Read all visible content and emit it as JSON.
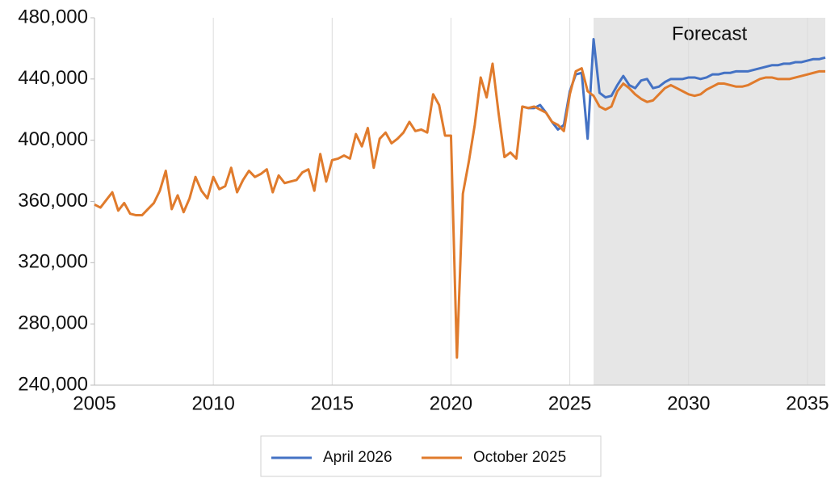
{
  "chart_data": {
    "type": "line",
    "annotation": "Forecast",
    "forecast_start": 2026,
    "shade_color": "#e6e6e6",
    "grid": "x",
    "xlim": [
      2005,
      2035.75
    ],
    "ylim": [
      240000,
      480000
    ],
    "xticks": [
      2005,
      2010,
      2015,
      2020,
      2025,
      2030,
      2035
    ],
    "yticks": [
      {
        "value": 240000,
        "label": "240,000"
      },
      {
        "value": 280000,
        "label": "280,000"
      },
      {
        "value": 320000,
        "label": "320,000"
      },
      {
        "value": 360000,
        "label": "360,000"
      },
      {
        "value": 400000,
        "label": "400,000"
      },
      {
        "value": 440000,
        "label": "440,000"
      },
      {
        "value": 480000,
        "label": "480,000"
      }
    ],
    "x": [
      2005,
      2005.25,
      2005.5,
      2005.75,
      2006,
      2006.25,
      2006.5,
      2006.75,
      2007,
      2007.25,
      2007.5,
      2007.75,
      2008,
      2008.25,
      2008.5,
      2008.75,
      2009,
      2009.25,
      2009.5,
      2009.75,
      2010,
      2010.25,
      2010.5,
      2010.75,
      2011,
      2011.25,
      2011.5,
      2011.75,
      2012,
      2012.25,
      2012.5,
      2012.75,
      2013,
      2013.25,
      2013.5,
      2013.75,
      2014,
      2014.25,
      2014.5,
      2014.75,
      2015,
      2015.25,
      2015.5,
      2015.75,
      2016,
      2016.25,
      2016.5,
      2016.75,
      2017,
      2017.25,
      2017.5,
      2017.75,
      2018,
      2018.25,
      2018.5,
      2018.75,
      2019,
      2019.25,
      2019.5,
      2019.75,
      2020,
      2020.25,
      2020.5,
      2020.75,
      2021,
      2021.25,
      2021.5,
      2021.75,
      2022,
      2022.25,
      2022.5,
      2022.75,
      2023,
      2023.25,
      2023.5,
      2023.75,
      2024,
      2024.25,
      2024.5,
      2024.75,
      2025,
      2025.25,
      2025.5,
      2025.75,
      2026,
      2026.25,
      2026.5,
      2026.75,
      2027,
      2027.25,
      2027.5,
      2027.75,
      2028,
      2028.25,
      2028.5,
      2028.75,
      2029,
      2029.25,
      2029.5,
      2029.75,
      2030,
      2030.25,
      2030.5,
      2030.75,
      2031,
      2031.25,
      2031.5,
      2031.75,
      2032,
      2032.25,
      2032.5,
      2032.75,
      2033,
      2033.25,
      2033.5,
      2033.75,
      2034,
      2034.25,
      2034.5,
      2034.75,
      2035,
      2035.25,
      2035.5,
      2035.75
    ],
    "series": [
      {
        "name": "April 2026",
        "color": "#4472c4",
        "values": [
          null,
          null,
          null,
          null,
          null,
          null,
          null,
          null,
          null,
          null,
          null,
          null,
          null,
          null,
          null,
          null,
          null,
          null,
          null,
          null,
          null,
          null,
          null,
          null,
          null,
          null,
          null,
          null,
          null,
          null,
          null,
          null,
          null,
          null,
          null,
          null,
          null,
          null,
          null,
          null,
          null,
          null,
          null,
          null,
          null,
          null,
          null,
          null,
          null,
          null,
          null,
          null,
          null,
          null,
          null,
          null,
          null,
          null,
          null,
          null,
          null,
          null,
          null,
          null,
          null,
          null,
          null,
          null,
          null,
          null,
          null,
          null,
          422000,
          421000,
          421000,
          423000,
          418000,
          412000,
          407000,
          410000,
          432000,
          443000,
          444000,
          401000,
          466000,
          431000,
          428000,
          429000,
          436000,
          442000,
          436000,
          434000,
          439000,
          440000,
          434000,
          435000,
          438000,
          440000,
          440000,
          440000,
          441000,
          441000,
          440000,
          441000,
          443000,
          443000,
          444000,
          444000,
          445000,
          445000,
          445000,
          446000,
          447000,
          448000,
          449000,
          449000,
          450000,
          450000,
          451000,
          451000,
          452000,
          453000,
          453000,
          454000
        ]
      },
      {
        "name": "October 2025",
        "color": "#e07b2c",
        "values": [
          358000,
          356000,
          361000,
          366000,
          354000,
          359000,
          352000,
          351000,
          351000,
          355000,
          359000,
          367000,
          380000,
          355000,
          364000,
          353000,
          362000,
          376000,
          367000,
          362000,
          376000,
          368000,
          370000,
          382000,
          366000,
          374000,
          380000,
          376000,
          378000,
          381000,
          366000,
          377000,
          372000,
          373000,
          374000,
          379000,
          381000,
          367000,
          391000,
          373000,
          387000,
          388000,
          390000,
          388000,
          404000,
          396000,
          408000,
          382000,
          401000,
          405000,
          398000,
          401000,
          405000,
          412000,
          406000,
          407000,
          405000,
          430000,
          423000,
          403000,
          403000,
          258000,
          365000,
          386000,
          410000,
          441000,
          428000,
          450000,
          418000,
          389000,
          392000,
          388000,
          422000,
          421000,
          422000,
          420000,
          418000,
          412000,
          410000,
          406000,
          430000,
          445000,
          447000,
          432000,
          429000,
          422000,
          420000,
          422000,
          432000,
          437000,
          434000,
          430000,
          427000,
          425000,
          426000,
          430000,
          434000,
          436000,
          434000,
          432000,
          430000,
          429000,
          430000,
          433000,
          435000,
          437000,
          437000,
          436000,
          435000,
          435000,
          436000,
          438000,
          440000,
          441000,
          441000,
          440000,
          440000,
          440000,
          441000,
          442000,
          443000,
          444000,
          445000,
          445000
        ]
      }
    ]
  }
}
